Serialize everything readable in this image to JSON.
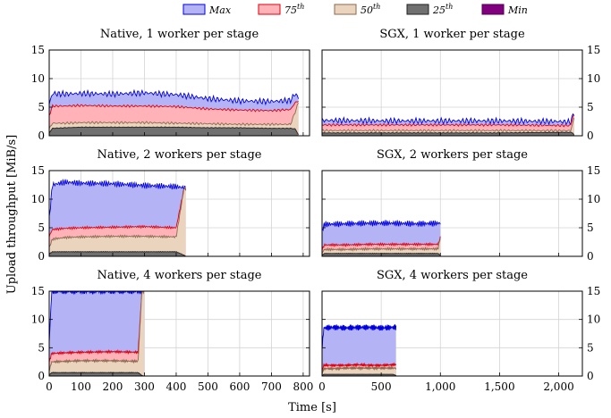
{
  "legend": [
    {
      "label": "Max",
      "sup": "",
      "fill": "#b3b3f5",
      "stroke": "#0000e0"
    },
    {
      "label": "75",
      "sup": "th",
      "fill": "#ffb3b8",
      "stroke": "#e00010"
    },
    {
      "label": "50",
      "sup": "th",
      "fill": "#ebd4bd",
      "stroke": "#8a6a50"
    },
    {
      "label": "25",
      "sup": "th",
      "fill": "#707070",
      "stroke": "#202020"
    },
    {
      "label": "Min",
      "sup": "",
      "fill": "#800080",
      "stroke": "#500050"
    }
  ],
  "ylabel": "Upload throughput [MiB/s]",
  "xlabel": "Time [s]",
  "chart_data": [
    {
      "type": "area",
      "title": "Native, 1 worker per stage",
      "group": "native",
      "xlim": [
        0,
        820
      ],
      "ylim": [
        0,
        15
      ],
      "xticks": [
        0,
        100,
        200,
        300,
        400,
        500,
        600,
        700,
        800
      ],
      "xticklabels": [
        "0",
        "100",
        "200",
        "300",
        "400",
        "500",
        "600",
        "700",
        "800"
      ],
      "yticks": [
        0,
        5,
        10,
        15
      ],
      "yticklabels": [
        "0",
        "5",
        "10",
        "15"
      ],
      "x_end": 785,
      "series": [
        {
          "name": "Max",
          "x": [
            0,
            10,
            50,
            100,
            200,
            300,
            400,
            500,
            600,
            700,
            760,
            775,
            785
          ],
          "values": [
            5.5,
            7.4,
            7.3,
            7.4,
            7.3,
            7.5,
            7.2,
            6.5,
            6.1,
            6.0,
            6.2,
            7.4,
            6.6
          ]
        },
        {
          "name": "75th",
          "x": [
            0,
            10,
            50,
            100,
            200,
            300,
            400,
            500,
            600,
            700,
            760,
            775,
            785
          ],
          "values": [
            3.5,
            5.2,
            5.2,
            5.3,
            5.2,
            5.2,
            5.1,
            4.7,
            4.5,
            4.4,
            4.6,
            5.8,
            6.1
          ]
        },
        {
          "name": "50th",
          "x": [
            0,
            10,
            50,
            100,
            200,
            300,
            400,
            500,
            600,
            700,
            760,
            775,
            785
          ],
          "values": [
            1.2,
            2.2,
            2.2,
            2.3,
            2.3,
            2.3,
            2.2,
            2.1,
            2.0,
            2.0,
            2.0,
            4.2,
            5.8
          ]
        },
        {
          "name": "25th",
          "x": [
            0,
            10,
            50,
            100,
            200,
            300,
            400,
            500,
            600,
            700,
            760,
            775,
            785
          ],
          "values": [
            0.5,
            1.3,
            1.4,
            1.5,
            1.5,
            1.5,
            1.5,
            1.4,
            1.4,
            1.3,
            1.3,
            1.2,
            0.2
          ]
        },
        {
          "name": "Min",
          "x": [
            0,
            785
          ],
          "values": [
            0.0,
            0.0
          ]
        }
      ]
    },
    {
      "type": "area",
      "title": "SGX, 1 worker per stage",
      "group": "sgx",
      "xlim": [
        0,
        2200
      ],
      "ylim": [
        0,
        15
      ],
      "xticks": [
        0,
        500,
        1000,
        1500,
        2000
      ],
      "xticklabels": [
        "0",
        "500",
        "1,000",
        "1,500",
        "2,000"
      ],
      "yticks": [
        0,
        5,
        10,
        15
      ],
      "yticklabels": [
        "0",
        "5",
        "10",
        "15"
      ],
      "x_end": 2130,
      "series": [
        {
          "name": "Max",
          "x": [
            0,
            500,
            1000,
            1500,
            2000,
            2100,
            2120,
            2130
          ],
          "values": [
            2.7,
            2.6,
            2.6,
            2.6,
            2.5,
            2.4,
            3.5,
            4.0
          ]
        },
        {
          "name": "75th",
          "x": [
            0,
            500,
            1000,
            1500,
            2000,
            2100,
            2120,
            2130
          ],
          "values": [
            1.9,
            1.9,
            1.9,
            1.9,
            1.8,
            1.8,
            3.4,
            4.5
          ]
        },
        {
          "name": "50th",
          "x": [
            0,
            500,
            1000,
            1500,
            2000,
            2100,
            2120,
            2130
          ],
          "values": [
            0.9,
            0.9,
            0.9,
            0.9,
            0.9,
            0.9,
            2.2,
            3.2
          ]
        },
        {
          "name": "25th",
          "x": [
            0,
            500,
            1000,
            1500,
            2000,
            2100,
            2120,
            2130
          ],
          "values": [
            0.5,
            0.5,
            0.5,
            0.5,
            0.6,
            0.6,
            0.5,
            0.1
          ]
        },
        {
          "name": "Min",
          "x": [
            0,
            2130
          ],
          "values": [
            0.0,
            0.0
          ]
        }
      ]
    },
    {
      "type": "area",
      "title": "Native, 2 workers per stage",
      "group": "native",
      "xlim": [
        0,
        820
      ],
      "ylim": [
        0,
        15
      ],
      "xticks": [
        0,
        100,
        200,
        300,
        400,
        500,
        600,
        700,
        800
      ],
      "xticklabels": [
        "0",
        "100",
        "200",
        "300",
        "400",
        "500",
        "600",
        "700",
        "800"
      ],
      "yticks": [
        0,
        5,
        10,
        15
      ],
      "yticklabels": [
        "0",
        "5",
        "10",
        "15"
      ],
      "x_end": 430,
      "series": [
        {
          "name": "Max",
          "x": [
            0,
            10,
            50,
            100,
            200,
            300,
            400,
            425,
            430
          ],
          "values": [
            6.5,
            12.5,
            13.0,
            12.8,
            12.7,
            12.4,
            12.2,
            12.0,
            12.0
          ]
        },
        {
          "name": "75th",
          "x": [
            0,
            10,
            50,
            100,
            200,
            300,
            400,
            425,
            430
          ],
          "values": [
            3.5,
            4.7,
            4.9,
            5.0,
            5.1,
            5.2,
            5.0,
            12.0,
            12.0
          ]
        },
        {
          "name": "50th",
          "x": [
            0,
            10,
            50,
            100,
            200,
            300,
            400,
            425,
            430
          ],
          "values": [
            1.5,
            3.0,
            3.3,
            3.4,
            3.5,
            3.5,
            3.4,
            12.0,
            12.0
          ]
        },
        {
          "name": "25th",
          "x": [
            0,
            10,
            50,
            100,
            200,
            300,
            400,
            425,
            430
          ],
          "values": [
            0.4,
            0.8,
            0.8,
            0.8,
            0.8,
            0.8,
            0.8,
            0.2,
            0.0
          ]
        },
        {
          "name": "Min",
          "x": [
            0,
            430
          ],
          "values": [
            0.0,
            0.0
          ]
        }
      ]
    },
    {
      "type": "area",
      "title": "SGX, 2 workers per stage",
      "group": "sgx",
      "xlim": [
        0,
        2200
      ],
      "ylim": [
        0,
        15
      ],
      "xticks": [
        0,
        500,
        1000,
        1500,
        2000
      ],
      "xticklabels": [
        "0",
        "500",
        "1,000",
        "1,500",
        "2,000"
      ],
      "yticks": [
        0,
        5,
        10,
        15
      ],
      "yticklabels": [
        "0",
        "5",
        "10",
        "15"
      ],
      "x_end": 1000,
      "series": [
        {
          "name": "Max",
          "x": [
            0,
            20,
            200,
            400,
            600,
            800,
            980,
            1000
          ],
          "values": [
            4.5,
            5.6,
            5.7,
            5.8,
            5.8,
            5.7,
            5.8,
            5.8
          ]
        },
        {
          "name": "75th",
          "x": [
            0,
            20,
            200,
            400,
            600,
            800,
            980,
            1000
          ],
          "values": [
            1.2,
            2.0,
            2.0,
            2.1,
            2.1,
            2.1,
            2.1,
            3.3
          ]
        },
        {
          "name": "50th",
          "x": [
            0,
            20,
            200,
            400,
            600,
            800,
            980,
            1000
          ],
          "values": [
            0.6,
            1.2,
            1.2,
            1.3,
            1.3,
            1.3,
            1.3,
            3.3
          ]
        },
        {
          "name": "25th",
          "x": [
            0,
            20,
            200,
            400,
            600,
            800,
            980,
            1000
          ],
          "values": [
            0.2,
            0.5,
            0.5,
            0.5,
            0.5,
            0.5,
            0.5,
            0.2
          ]
        },
        {
          "name": "Min",
          "x": [
            0,
            1000
          ],
          "values": [
            0.0,
            0.0
          ]
        }
      ]
    },
    {
      "type": "area",
      "title": "Native, 4 workers per stage",
      "group": "native",
      "xlim": [
        0,
        820
      ],
      "ylim": [
        0,
        15
      ],
      "xticks": [
        0,
        100,
        200,
        300,
        400,
        500,
        600,
        700,
        800
      ],
      "xticklabels": [
        "0",
        "100",
        "200",
        "300",
        "400",
        "500",
        "600",
        "700",
        "800"
      ],
      "yticks": [
        0,
        5,
        10,
        15
      ],
      "yticklabels": [
        "0",
        "5",
        "10",
        "15"
      ],
      "x_end": 298,
      "series": [
        {
          "name": "Max",
          "x": [
            0,
            8,
            50,
            100,
            200,
            280,
            298
          ],
          "values": [
            6.0,
            15.0,
            15.0,
            15.0,
            15.0,
            15.0,
            15.0
          ]
        },
        {
          "name": "75th",
          "x": [
            0,
            8,
            50,
            100,
            200,
            280,
            292,
            298
          ],
          "values": [
            2.5,
            4.0,
            4.1,
            4.2,
            4.3,
            4.2,
            15.0,
            15.0
          ]
        },
        {
          "name": "50th",
          "x": [
            0,
            8,
            50,
            100,
            200,
            280,
            292,
            298
          ],
          "values": [
            1.0,
            2.5,
            2.6,
            2.7,
            2.7,
            2.6,
            15.0,
            15.0
          ]
        },
        {
          "name": "25th",
          "x": [
            0,
            8,
            50,
            100,
            200,
            280,
            292,
            298
          ],
          "values": [
            0.2,
            0.6,
            0.6,
            0.6,
            0.6,
            0.6,
            0.1,
            0.0
          ]
        },
        {
          "name": "Min",
          "x": [
            0,
            298
          ],
          "values": [
            0.0,
            0.0
          ]
        }
      ]
    },
    {
      "type": "area",
      "title": "SGX, 4 workers per stage",
      "group": "sgx",
      "xlim": [
        0,
        2200
      ],
      "ylim": [
        0,
        15
      ],
      "xticks": [
        0,
        500,
        1000,
        1500,
        2000
      ],
      "xticklabels": [
        "0",
        "500",
        "1,000",
        "1,500",
        "2,000"
      ],
      "yticks": [
        0,
        5,
        10,
        15
      ],
      "yticklabels": [
        "0",
        "5",
        "10",
        "15"
      ],
      "x_end": 625,
      "series": [
        {
          "name": "Max",
          "x": [
            0,
            15,
            100,
            200,
            300,
            400,
            500,
            600,
            625
          ],
          "values": [
            5.0,
            8.5,
            8.6,
            8.5,
            8.6,
            8.6,
            8.5,
            8.6,
            8.6
          ]
        },
        {
          "name": "75th",
          "x": [
            0,
            15,
            100,
            200,
            300,
            400,
            500,
            600,
            625
          ],
          "values": [
            1.0,
            1.9,
            1.9,
            1.9,
            2.0,
            1.9,
            1.9,
            2.0,
            2.0
          ]
        },
        {
          "name": "50th",
          "x": [
            0,
            15,
            100,
            200,
            300,
            400,
            500,
            600,
            625
          ],
          "values": [
            0.5,
            1.3,
            1.3,
            1.4,
            1.4,
            1.4,
            1.4,
            1.4,
            1.4
          ]
        },
        {
          "name": "25th",
          "x": [
            0,
            15,
            100,
            200,
            300,
            400,
            500,
            600,
            625
          ],
          "values": [
            0.1,
            0.3,
            0.3,
            0.3,
            0.3,
            0.3,
            0.3,
            0.3,
            0.1
          ]
        },
        {
          "name": "Min",
          "x": [
            0,
            625
          ],
          "values": [
            0.0,
            0.0
          ]
        }
      ]
    }
  ]
}
